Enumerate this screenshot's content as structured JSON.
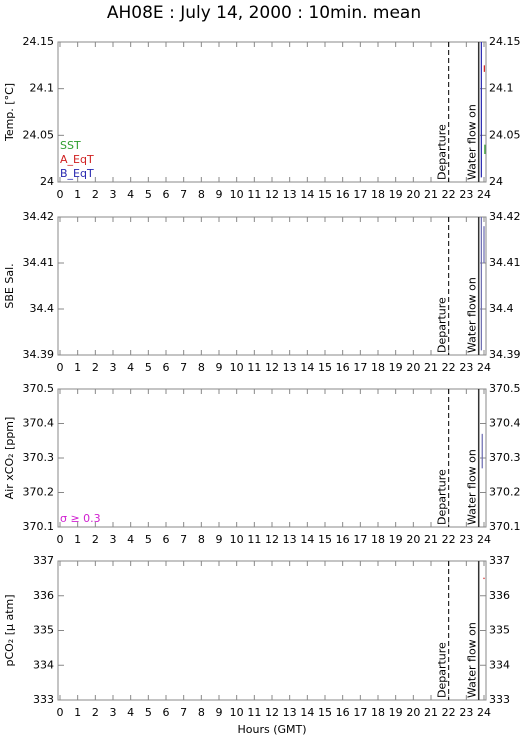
{
  "title": "AH08E : July 14, 2000 : 10min. mean",
  "xlabel": "Hours (GMT)",
  "chart_data": [
    {
      "type": "line",
      "ylabel": "Temp. [°C]",
      "xlim": [
        0,
        24
      ],
      "xticks": [
        0,
        1,
        2,
        3,
        4,
        5,
        6,
        7,
        8,
        9,
        10,
        11,
        12,
        13,
        14,
        15,
        16,
        17,
        18,
        19,
        20,
        21,
        22,
        23,
        24
      ],
      "ylim": [
        24,
        24.15
      ],
      "yticks": [
        24,
        24.05,
        24.1,
        24.15
      ],
      "events": [
        {
          "x": 22,
          "label": "Departure",
          "style": "dashed"
        },
        {
          "x": 23.7,
          "label": "Water flow on",
          "style": "solid"
        }
      ],
      "series": [
        {
          "name": "SST",
          "color": "#2e9e2e",
          "x": [
            24.05,
            24.05
          ],
          "values": [
            24.04,
            24.03
          ]
        },
        {
          "name": "A_EqT",
          "color": "#d02020",
          "x": [
            24.02,
            24.02
          ],
          "values": [
            24.125,
            24.118
          ]
        },
        {
          "name": "B_EqT",
          "color": "#2828b0",
          "x": [
            23.85,
            23.85
          ],
          "values": [
            24.15,
            24.005
          ]
        }
      ]
    },
    {
      "type": "line",
      "ylabel": "SBE Sal.",
      "xlim": [
        0,
        24
      ],
      "xticks": [
        0,
        1,
        2,
        3,
        4,
        5,
        6,
        7,
        8,
        9,
        10,
        11,
        12,
        13,
        14,
        15,
        16,
        17,
        18,
        19,
        20,
        21,
        22,
        23,
        24
      ],
      "ylim": [
        34.39,
        34.42
      ],
      "yticks": [
        34.39,
        34.4,
        34.41,
        34.42
      ],
      "events": [
        {
          "x": 22,
          "label": "Departure",
          "style": "dashed"
        },
        {
          "x": 23.7,
          "label": "Water flow on",
          "style": "solid"
        }
      ],
      "series": [
        {
          "color": "#6a6ab0",
          "x": [
            23.85,
            23.85
          ],
          "values": [
            34.42,
            34.391
          ]
        },
        {
          "color": "#6a6ab0",
          "x": [
            24.0,
            24.0
          ],
          "values": [
            34.418,
            34.41
          ]
        }
      ]
    },
    {
      "type": "line",
      "ylabel": "Air xCO₂ [ppm]",
      "xlim": [
        0,
        24
      ],
      "xticks": [
        0,
        1,
        2,
        3,
        4,
        5,
        6,
        7,
        8,
        9,
        10,
        11,
        12,
        13,
        14,
        15,
        16,
        17,
        18,
        19,
        20,
        21,
        22,
        23,
        24
      ],
      "ylim": [
        370.1,
        370.5
      ],
      "yticks": [
        370.1,
        370.2,
        370.3,
        370.4,
        370.5
      ],
      "events": [
        {
          "x": 22,
          "label": "Departure",
          "style": "dashed"
        },
        {
          "x": 23.7,
          "label": "Water flow on",
          "style": "solid"
        }
      ],
      "series": [
        {
          "name": "σ ≥ 0.3",
          "color": "#d020d0",
          "x": [],
          "values": []
        },
        {
          "color": "#6a6ab0",
          "x": [
            23.9,
            23.9
          ],
          "values": [
            370.37,
            370.27
          ]
        }
      ]
    },
    {
      "type": "line",
      "ylabel": "pCO₂ [µ atm]",
      "xlim": [
        0,
        24
      ],
      "xticks": [
        0,
        1,
        2,
        3,
        4,
        5,
        6,
        7,
        8,
        9,
        10,
        11,
        12,
        13,
        14,
        15,
        16,
        17,
        18,
        19,
        20,
        21,
        22,
        23,
        24
      ],
      "ylim": [
        333,
        337
      ],
      "yticks": [
        333,
        334,
        335,
        336,
        337
      ],
      "events": [
        {
          "x": 22,
          "label": "Departure",
          "style": "dashed"
        },
        {
          "x": 23.7,
          "label": "Water flow on",
          "style": "solid"
        }
      ],
      "series": [
        {
          "color": "#d02020",
          "x": [
            24.0,
            24.0
          ],
          "values": [
            336.52,
            336.48
          ]
        }
      ]
    }
  ]
}
